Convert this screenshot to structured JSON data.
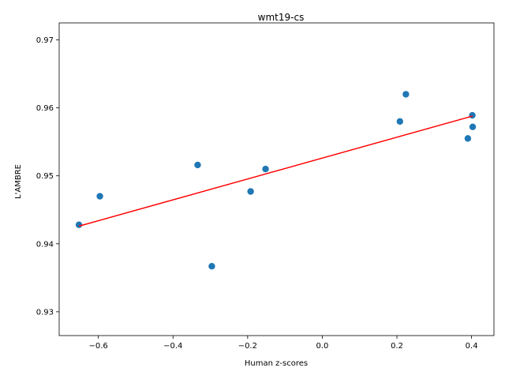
{
  "chart_data": {
    "type": "scatter",
    "title": "wmt19-cs",
    "xlabel": "Human z-scores",
    "ylabel": "L'AMBRE",
    "xlim": [
      -0.705,
      0.46
    ],
    "ylim": [
      0.9265,
      0.9725
    ],
    "xticks": [
      -0.6,
      -0.4,
      -0.2,
      0.0,
      0.2,
      0.4
    ],
    "xtick_labels": [
      "−0.6",
      "−0.4",
      "−0.2",
      "0.0",
      "0.2",
      "0.4"
    ],
    "yticks": [
      0.93,
      0.94,
      0.95,
      0.96,
      0.97
    ],
    "ytick_labels": [
      "0.93",
      "0.94",
      "0.95",
      "0.96",
      "0.97"
    ],
    "grid": false,
    "points": [
      {
        "x": -0.652,
        "y": 0.9428
      },
      {
        "x": -0.596,
        "y": 0.947
      },
      {
        "x": -0.334,
        "y": 0.9516
      },
      {
        "x": -0.296,
        "y": 0.9367
      },
      {
        "x": -0.192,
        "y": 0.9477
      },
      {
        "x": -0.152,
        "y": 0.951
      },
      {
        "x": 0.208,
        "y": 0.958
      },
      {
        "x": 0.224,
        "y": 0.962
      },
      {
        "x": 0.39,
        "y": 0.9555
      },
      {
        "x": 0.402,
        "y": 0.9589
      },
      {
        "x": 0.403,
        "y": 0.9572
      }
    ],
    "fit_line": {
      "x": [
        -0.652,
        0.403
      ],
      "y": [
        0.9426,
        0.9588
      ]
    },
    "colors": {
      "points": "#1f77b4",
      "fit_line": "#ff0000"
    }
  }
}
